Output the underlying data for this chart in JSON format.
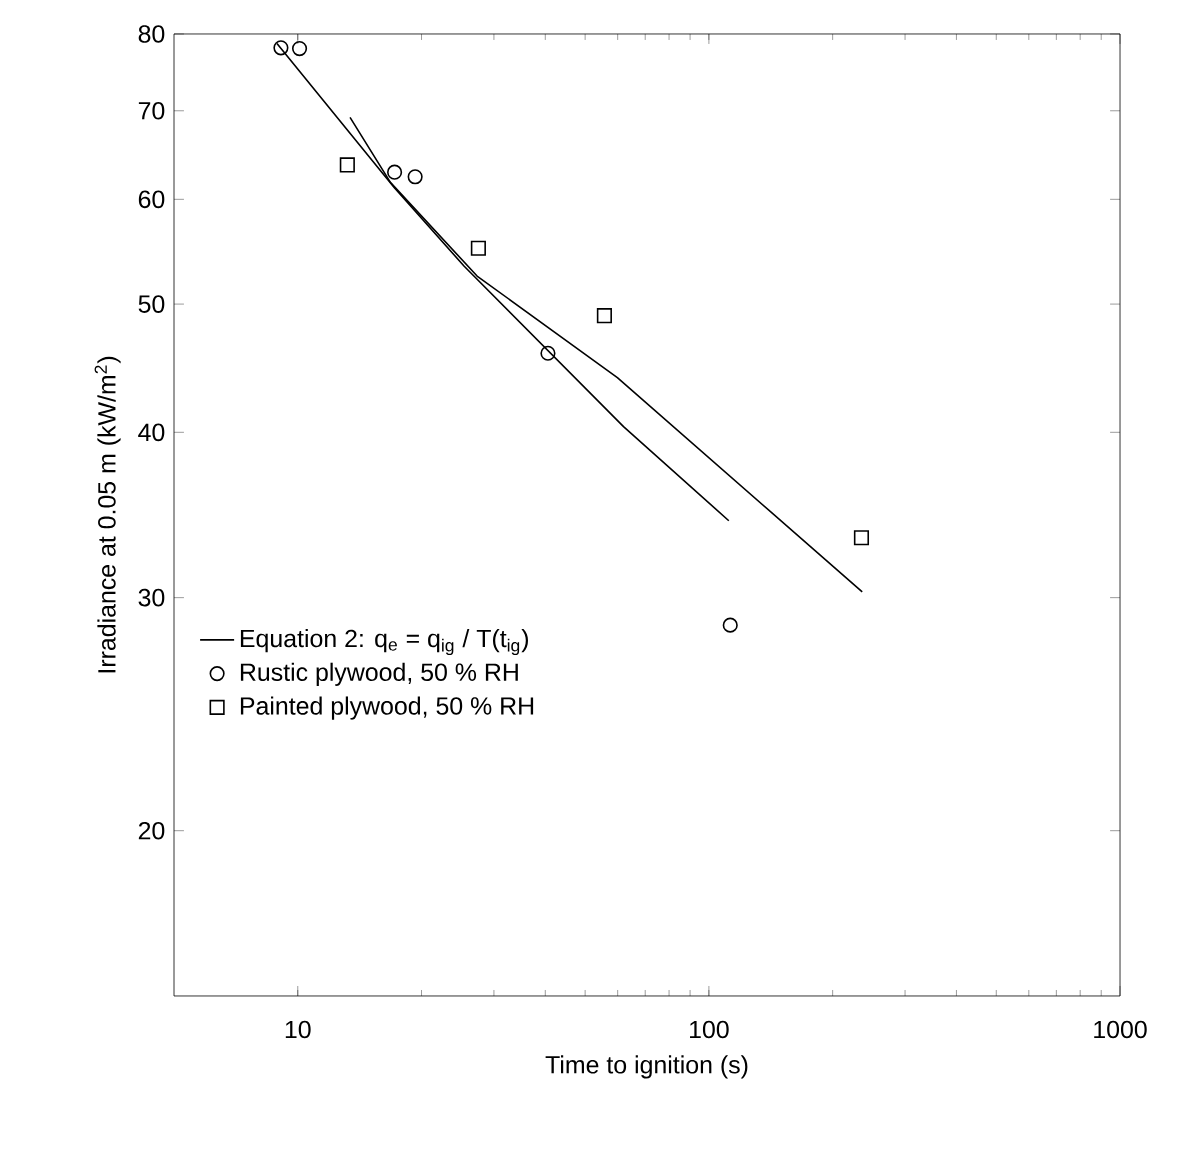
{
  "chart_data": {
    "type": "scatter",
    "xlabel": "Time to ignition (s)",
    "ylabel": "Irradiance at 0.05 m (kW/m$^{2}$)",
    "log": "xy",
    "xlim": [
      5,
      1000
    ],
    "ylim": [
      15,
      80
    ],
    "xticks": [
      10,
      100,
      1000
    ],
    "yticks": [
      20,
      30,
      40,
      50,
      60,
      70,
      80
    ],
    "grid": false,
    "legend": "bottom left",
    "series": [
      {
        "name": "Equation 2:  q$_{e}$ = q$_{ig}$ / T(t$_{ig}$)",
        "type": "line",
        "marker": "none",
        "line_style": "solid",
        "color": "#000000",
        "x": [
          8.9,
          17.2,
          25.4,
          62.0,
          111.8
        ],
        "values": [
          78.7,
          61.2,
          53.4,
          40.4,
          34.3
        ]
      },
      {
        "type": "line",
        "marker": "none",
        "line_style": "solid",
        "color": "#000000",
        "x": [
          13.4,
          16.8,
          27.3,
          59.9,
          236
        ],
        "values": [
          69.2,
          61.8,
          52.5,
          44.0,
          30.3
        ]
      },
      {
        "name": "Rustic plywood, 50 % RH",
        "marker": "circle",
        "color": "#000000",
        "x": [
          9.1,
          10.1,
          17.2,
          19.3,
          40.6,
          112.7
        ],
        "values": [
          78.1,
          78.0,
          62.9,
          62.4,
          45.9,
          28.6
        ]
      },
      {
        "name": "Painted plywood, 50 % RH",
        "marker": "square",
        "color": "#000000",
        "x": [
          13.2,
          27.5,
          55.7,
          235
        ],
        "values": [
          63.7,
          55.1,
          49.0,
          33.3
        ]
      }
    ]
  }
}
